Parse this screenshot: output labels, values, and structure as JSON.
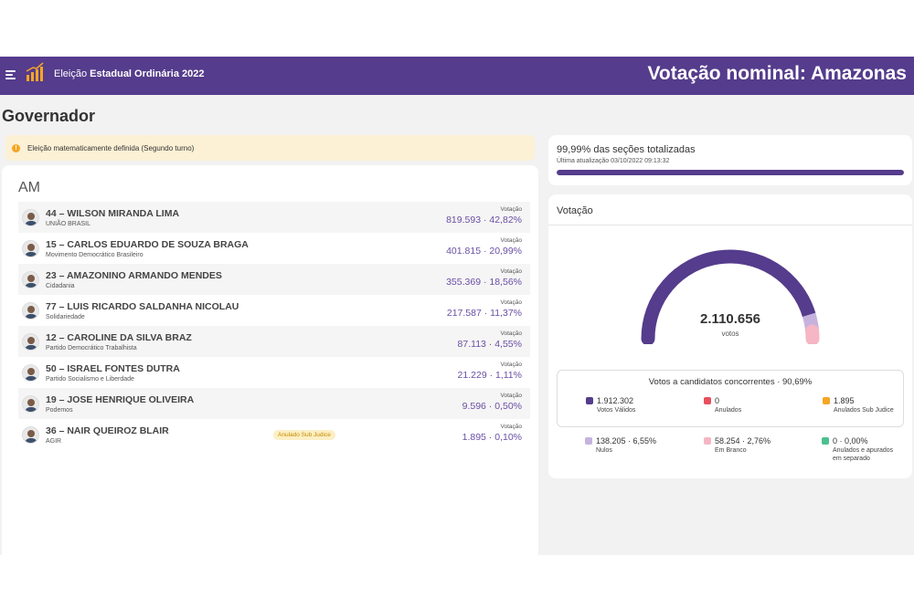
{
  "header": {
    "app_title_prefix": "Eleição ",
    "app_title_bold": "Estadual Ordinária 2022",
    "page_title": "Votação nominal: Amazonas"
  },
  "section_title": "Governador",
  "alert": {
    "text": "Eleição matematicamente definida (Segundo turno)",
    "icon": "info-icon"
  },
  "results": {
    "state": "AM",
    "vote_label": "Votação",
    "candidates": [
      {
        "name": "44 – WILSON MIRANDA LIMA",
        "party": "UNIÃO BRASIL",
        "votes": "819.593 · 42,82%",
        "badge": ""
      },
      {
        "name": "15 – CARLOS EDUARDO DE SOUZA BRAGA",
        "party": "Movimento Democrático Brasileiro",
        "votes": "401.815 · 20,99%",
        "badge": ""
      },
      {
        "name": "23 – AMAZONINO ARMANDO MENDES",
        "party": "Cidadania",
        "votes": "355.369 · 18,56%",
        "badge": ""
      },
      {
        "name": "77 – LUIS RICARDO SALDANHA NICOLAU",
        "party": "Solidariedade",
        "votes": "217.587 · 11,37%",
        "badge": ""
      },
      {
        "name": "12 – CAROLINE DA SILVA BRAZ",
        "party": "Partido Democrático Trabalhista",
        "votes": "87.113 · 4,55%",
        "badge": ""
      },
      {
        "name": "50 – ISRAEL FONTES DUTRA",
        "party": "Partido Socialismo e Liberdade",
        "votes": "21.229 · 1,11%",
        "badge": ""
      },
      {
        "name": "19 – JOSE HENRIQUE OLIVEIRA",
        "party": "Podemos",
        "votes": "9.596 · 0,50%",
        "badge": ""
      },
      {
        "name": "36 – NAIR QUEIROZ BLAIR",
        "party": "AGIR",
        "votes": "1.895 · 0,10%",
        "badge": "Anulado Sub Judice"
      }
    ]
  },
  "progress": {
    "title": "99,99% das seções totalizadas",
    "subtitle": "Última atualização 03/10/2022 09:13:32",
    "fraction": 0.9999
  },
  "votacao": {
    "title": "Votação",
    "total": "2.110.656",
    "total_label": "votos",
    "concorrentes_title": "Votos a candidatos concorrentes · 90,69%",
    "gauge_fractions": {
      "validos": 0.9059,
      "nulos": 0.0655,
      "brancos": 0.0276
    },
    "legend": [
      {
        "value": "1.912.302",
        "label": "Votos Válidos",
        "color": "#553c8c"
      },
      {
        "value": "0",
        "label": "Anulados",
        "color": "#e8505b"
      },
      {
        "value": "1.895",
        "label": "Anulados Sub Judice",
        "color": "#f5a623"
      },
      {
        "value": "138.205 · 6,55%",
        "label": "Nulos",
        "color": "#c5b3dd"
      },
      {
        "value": "58.254 · 2,76%",
        "label": "Em Branco",
        "color": "#f6b6c3"
      },
      {
        "value": "0 · 0,00%",
        "label": "Anulados e apurados em separado",
        "color": "#4cbf8f"
      }
    ]
  }
}
